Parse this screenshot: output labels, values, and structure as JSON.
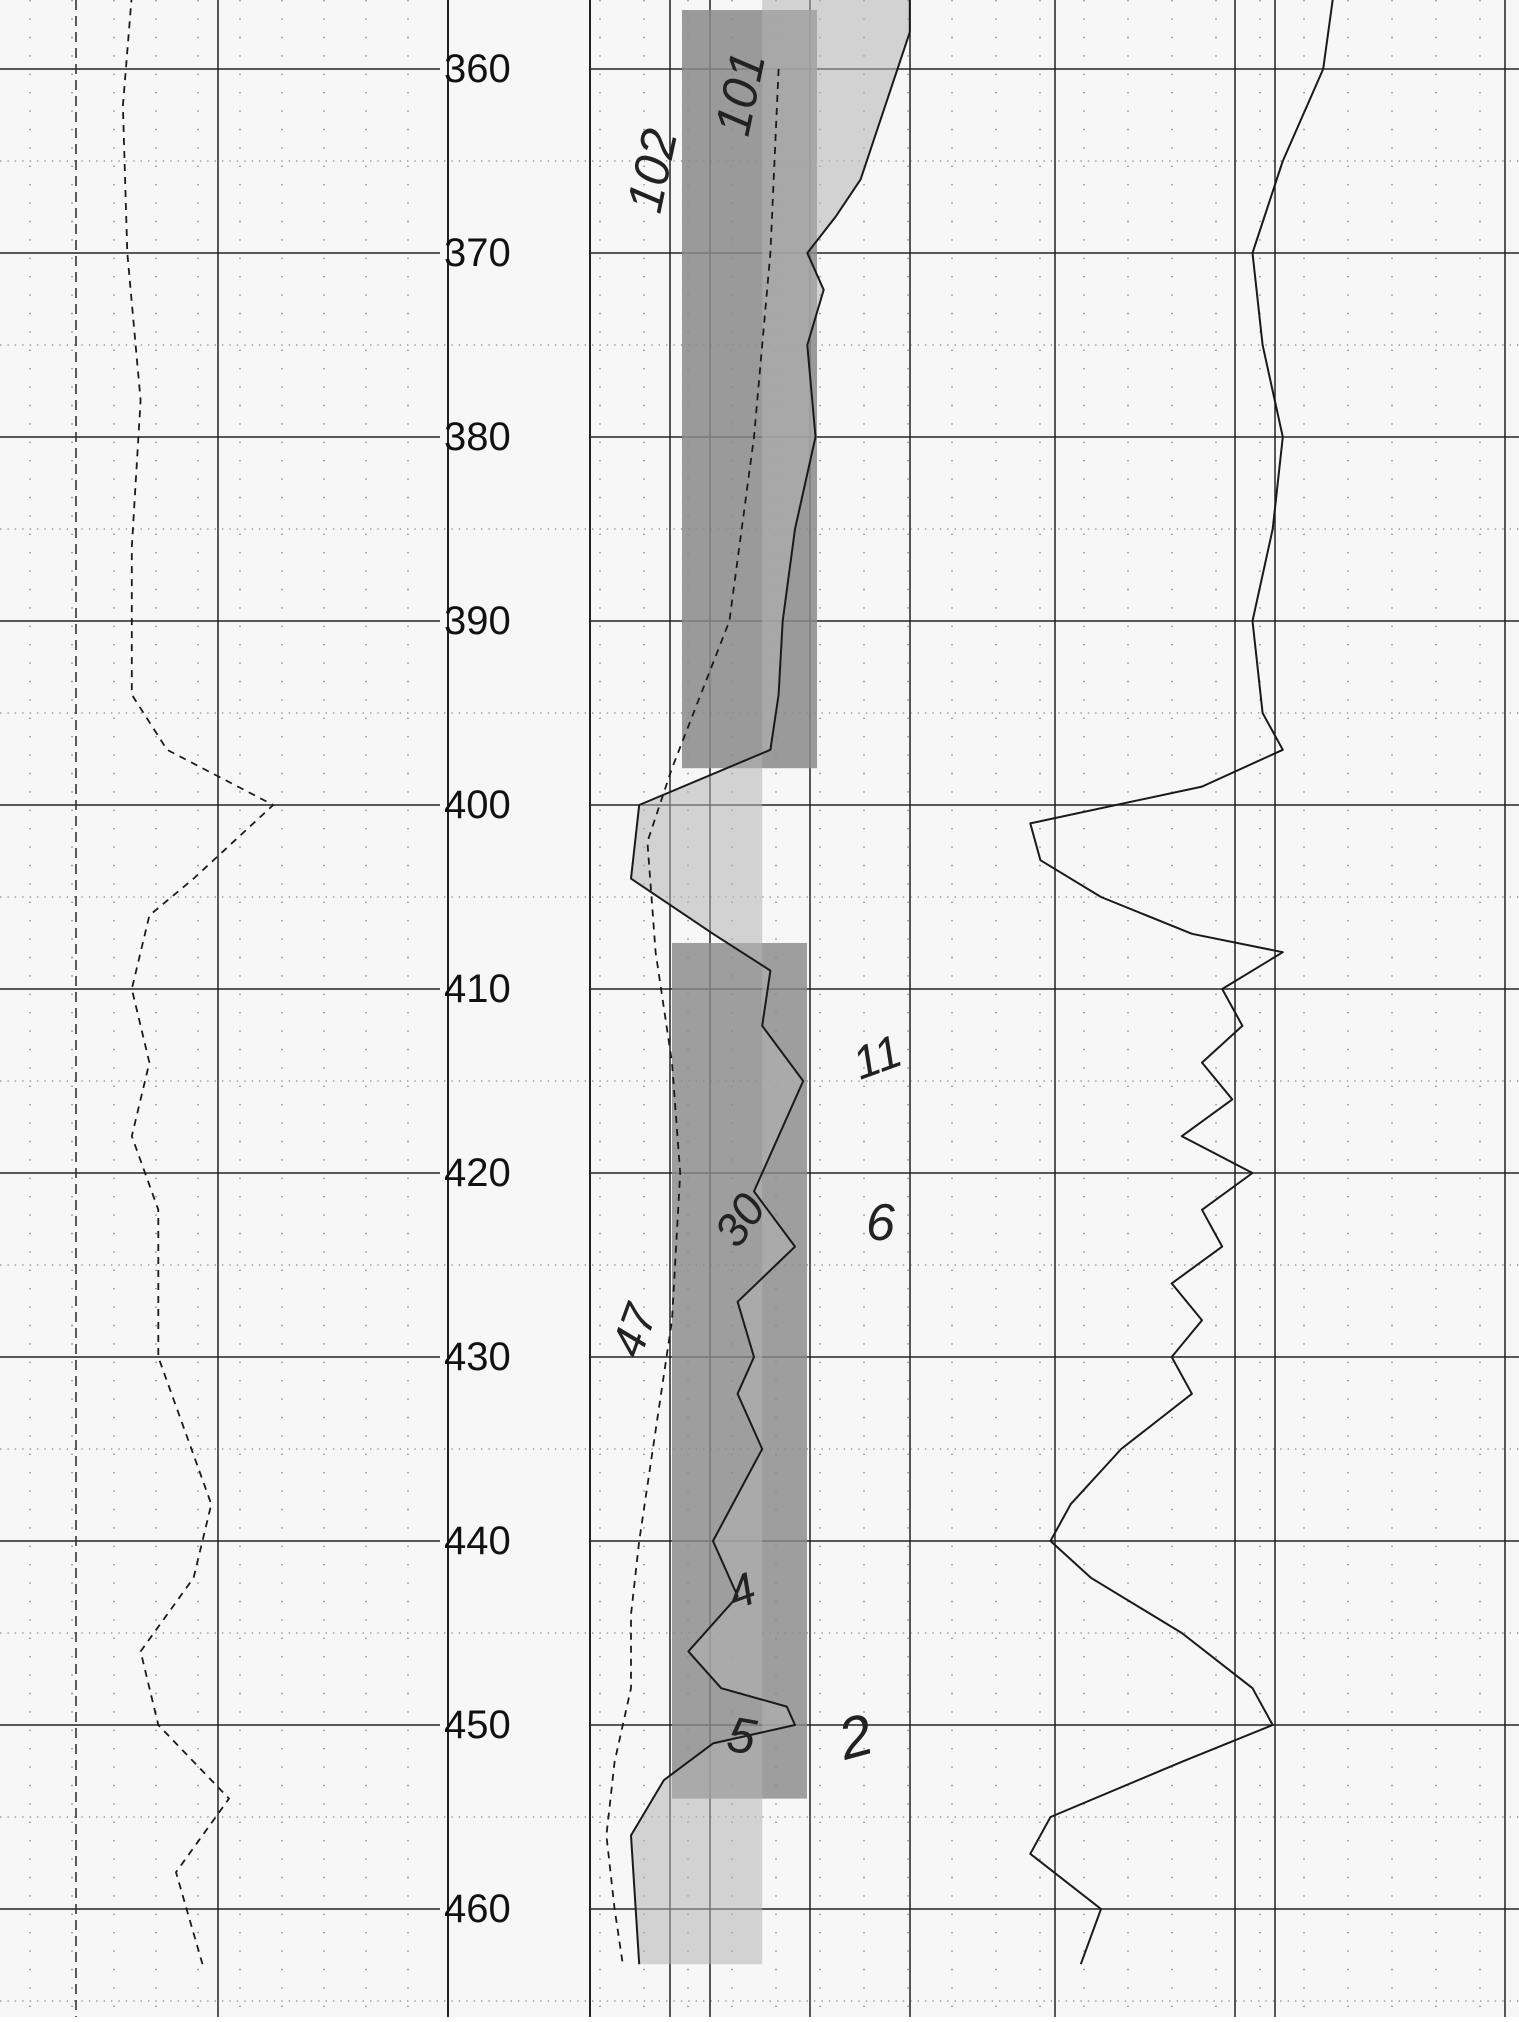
{
  "chart_data": {
    "type": "line",
    "depth_axis": {
      "ticks": [
        "360",
        "370",
        "380",
        "390",
        "400",
        "410",
        "420",
        "430",
        "440",
        "450",
        "460"
      ],
      "range": [
        356.5,
        463.5
      ],
      "direction": "down"
    },
    "annotations": [
      "102",
      "101",
      "11",
      "30",
      "6",
      "47",
      "4",
      "5",
      "2"
    ],
    "series": [
      {
        "track": "left",
        "style": "dashed",
        "depth": [
          356,
          362,
          370,
          378,
          386,
          394,
          397,
          400,
          404,
          406,
          410,
          414,
          418,
          422,
          430,
          438,
          442,
          446,
          450,
          454,
          458,
          463
        ],
        "value": [
          0.28,
          0.26,
          0.27,
          0.3,
          0.28,
          0.28,
          0.36,
          0.6,
          0.42,
          0.32,
          0.28,
          0.32,
          0.28,
          0.34,
          0.34,
          0.46,
          0.42,
          0.3,
          0.34,
          0.5,
          0.38,
          0.44
        ]
      },
      {
        "track": "middle",
        "style": "solid",
        "fill": true,
        "depth": [
          356,
          358,
          362,
          366,
          368,
          370,
          372,
          375,
          380,
          385,
          390,
          394,
          397,
          400,
          404,
          407,
          409,
          412,
          415,
          418,
          421,
          424,
          427,
          430,
          432,
          435,
          440,
          443,
          446,
          448,
          449,
          450,
          451,
          453,
          456,
          463
        ],
        "value": [
          0.78,
          0.78,
          0.72,
          0.66,
          0.6,
          0.53,
          0.57,
          0.53,
          0.55,
          0.5,
          0.47,
          0.46,
          0.44,
          0.12,
          0.1,
          0.3,
          0.44,
          0.42,
          0.52,
          0.46,
          0.4,
          0.5,
          0.36,
          0.4,
          0.36,
          0.42,
          0.3,
          0.36,
          0.24,
          0.32,
          0.48,
          0.5,
          0.3,
          0.18,
          0.1,
          0.12
        ]
      },
      {
        "track": "middle",
        "style": "dashed",
        "depth": [
          360,
          370,
          380,
          390,
          398,
          402,
          408,
          414,
          420,
          428,
          434,
          440,
          444,
          448,
          452,
          456,
          460,
          463
        ],
        "value": [
          0.46,
          0.44,
          0.4,
          0.34,
          0.2,
          0.14,
          0.16,
          0.2,
          0.22,
          0.2,
          0.16,
          0.12,
          0.1,
          0.1,
          0.06,
          0.04,
          0.06,
          0.08
        ]
      },
      {
        "track": "right",
        "style": "solid",
        "depth": [
          356,
          360,
          365,
          370,
          375,
          380,
          385,
          390,
          395,
          397,
          399,
          401,
          403,
          405,
          407,
          408,
          410,
          412,
          414,
          416,
          418,
          420,
          422,
          424,
          426,
          428,
          430,
          432,
          435,
          438,
          440,
          442,
          445,
          448,
          450,
          452,
          455,
          457,
          460,
          463
        ],
        "value": [
          0.66,
          0.64,
          0.56,
          0.5,
          0.52,
          0.56,
          0.54,
          0.5,
          0.52,
          0.56,
          0.4,
          0.06,
          0.08,
          0.2,
          0.38,
          0.56,
          0.44,
          0.48,
          0.4,
          0.46,
          0.36,
          0.5,
          0.4,
          0.44,
          0.34,
          0.4,
          0.34,
          0.38,
          0.24,
          0.14,
          0.1,
          0.18,
          0.36,
          0.5,
          0.54,
          0.36,
          0.1,
          0.06,
          0.2,
          0.16
        ]
      }
    ]
  }
}
